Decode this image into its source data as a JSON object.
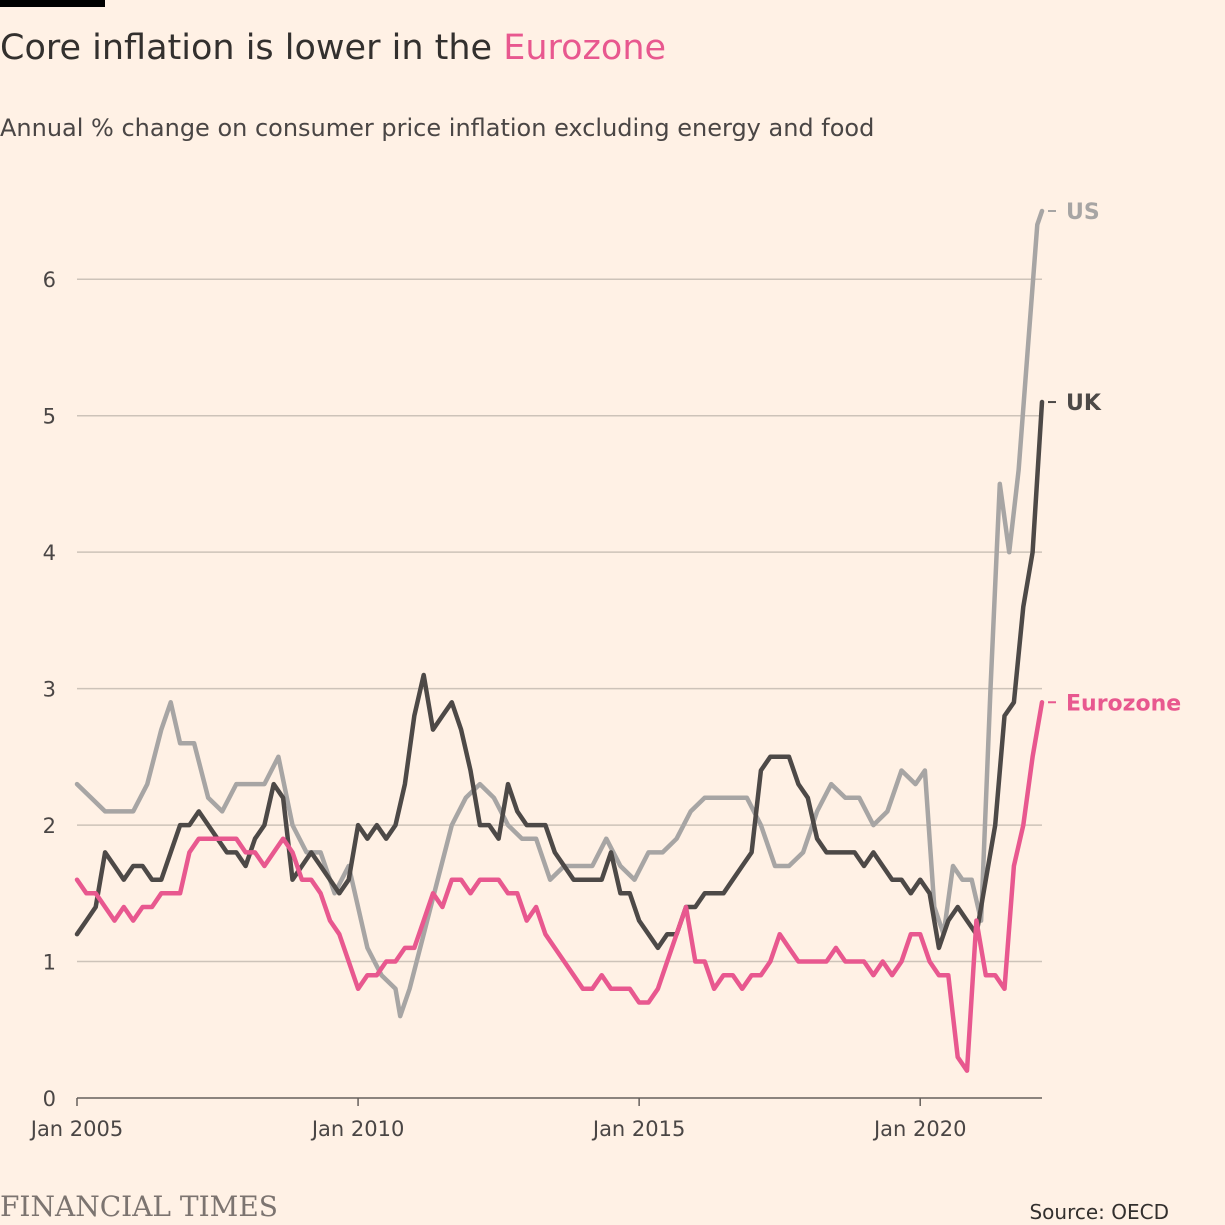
{
  "header": {
    "title_prefix": "Core inflation is lower in the ",
    "title_highlight": "Eurozone",
    "subtitle": "Annual % change on consumer price inflation excluding energy and food"
  },
  "footer": {
    "logo": "FINANCIAL TIMES",
    "source": "Source: OECD"
  },
  "chart_data": {
    "type": "line",
    "title": "Core inflation is lower in the Eurozone",
    "subtitle": "Annual % change on consumer price inflation excluding energy and food",
    "xlabel": "",
    "ylabel": "",
    "x_range": [
      "2005-01",
      "2022-03"
    ],
    "ylim": [
      0,
      6.5
    ],
    "y_ticks": [
      0,
      1,
      2,
      3,
      4,
      5,
      6
    ],
    "x_ticks": [
      {
        "label": "Jan 2005",
        "date": "2005-01"
      },
      {
        "label": "Jan 2010",
        "date": "2010-01"
      },
      {
        "label": "Jan 2015",
        "date": "2015-01"
      },
      {
        "label": "Jan 2020",
        "date": "2020-01"
      }
    ],
    "grid": "horizontal",
    "legend": "direct labels at line ends (right)",
    "series": [
      {
        "name": "US",
        "color": "#a7a5a4",
        "points": [
          [
            "2005-01",
            2.3
          ],
          [
            "2005-04",
            2.2
          ],
          [
            "2005-07",
            2.1
          ],
          [
            "2005-10",
            2.1
          ],
          [
            "2006-01",
            2.1
          ],
          [
            "2006-04",
            2.3
          ],
          [
            "2006-07",
            2.7
          ],
          [
            "2006-09",
            2.9
          ],
          [
            "2006-11",
            2.6
          ],
          [
            "2007-02",
            2.6
          ],
          [
            "2007-05",
            2.2
          ],
          [
            "2007-08",
            2.1
          ],
          [
            "2007-11",
            2.3
          ],
          [
            "2008-02",
            2.3
          ],
          [
            "2008-05",
            2.3
          ],
          [
            "2008-08",
            2.5
          ],
          [
            "2008-11",
            2.0
          ],
          [
            "2009-02",
            1.8
          ],
          [
            "2009-05",
            1.8
          ],
          [
            "2009-08",
            1.5
          ],
          [
            "2009-11",
            1.7
          ],
          [
            "2010-03",
            1.1
          ],
          [
            "2010-06",
            0.9
          ],
          [
            "2010-09",
            0.8
          ],
          [
            "2010-10",
            0.6
          ],
          [
            "2010-12",
            0.8
          ],
          [
            "2011-03",
            1.2
          ],
          [
            "2011-06",
            1.6
          ],
          [
            "2011-09",
            2.0
          ],
          [
            "2011-12",
            2.2
          ],
          [
            "2012-03",
            2.3
          ],
          [
            "2012-06",
            2.2
          ],
          [
            "2012-09",
            2.0
          ],
          [
            "2012-12",
            1.9
          ],
          [
            "2013-03",
            1.9
          ],
          [
            "2013-06",
            1.6
          ],
          [
            "2013-09",
            1.7
          ],
          [
            "2013-12",
            1.7
          ],
          [
            "2014-03",
            1.7
          ],
          [
            "2014-06",
            1.9
          ],
          [
            "2014-09",
            1.7
          ],
          [
            "2014-12",
            1.6
          ],
          [
            "2015-03",
            1.8
          ],
          [
            "2015-06",
            1.8
          ],
          [
            "2015-09",
            1.9
          ],
          [
            "2015-12",
            2.1
          ],
          [
            "2016-03",
            2.2
          ],
          [
            "2016-06",
            2.2
          ],
          [
            "2016-09",
            2.2
          ],
          [
            "2016-12",
            2.2
          ],
          [
            "2017-03",
            2.0
          ],
          [
            "2017-06",
            1.7
          ],
          [
            "2017-09",
            1.7
          ],
          [
            "2017-12",
            1.8
          ],
          [
            "2018-03",
            2.1
          ],
          [
            "2018-06",
            2.3
          ],
          [
            "2018-09",
            2.2
          ],
          [
            "2018-12",
            2.2
          ],
          [
            "2019-03",
            2.0
          ],
          [
            "2019-06",
            2.1
          ],
          [
            "2019-09",
            2.4
          ],
          [
            "2019-12",
            2.3
          ],
          [
            "2020-02",
            2.4
          ],
          [
            "2020-04",
            1.4
          ],
          [
            "2020-06",
            1.2
          ],
          [
            "2020-08",
            1.7
          ],
          [
            "2020-10",
            1.6
          ],
          [
            "2020-12",
            1.6
          ],
          [
            "2021-02",
            1.3
          ],
          [
            "2021-04",
            3.0
          ],
          [
            "2021-06",
            4.5
          ],
          [
            "2021-08",
            4.0
          ],
          [
            "2021-10",
            4.6
          ],
          [
            "2021-12",
            5.5
          ],
          [
            "2022-02",
            6.4
          ],
          [
            "2022-03",
            6.5
          ]
        ]
      },
      {
        "name": "UK",
        "color": "#4d4947",
        "points": [
          [
            "2005-01",
            1.2
          ],
          [
            "2005-03",
            1.3
          ],
          [
            "2005-05",
            1.4
          ],
          [
            "2005-07",
            1.8
          ],
          [
            "2005-09",
            1.7
          ],
          [
            "2005-11",
            1.6
          ],
          [
            "2006-01",
            1.7
          ],
          [
            "2006-03",
            1.7
          ],
          [
            "2006-05",
            1.6
          ],
          [
            "2006-07",
            1.6
          ],
          [
            "2006-09",
            1.8
          ],
          [
            "2006-11",
            2.0
          ],
          [
            "2007-01",
            2.0
          ],
          [
            "2007-03",
            2.1
          ],
          [
            "2007-05",
            2.0
          ],
          [
            "2007-07",
            1.9
          ],
          [
            "2007-09",
            1.8
          ],
          [
            "2007-11",
            1.8
          ],
          [
            "2008-01",
            1.7
          ],
          [
            "2008-03",
            1.9
          ],
          [
            "2008-05",
            2.0
          ],
          [
            "2008-07",
            2.3
          ],
          [
            "2008-09",
            2.2
          ],
          [
            "2008-11",
            1.6
          ],
          [
            "2009-01",
            1.7
          ],
          [
            "2009-03",
            1.8
          ],
          [
            "2009-05",
            1.7
          ],
          [
            "2009-07",
            1.6
          ],
          [
            "2009-09",
            1.5
          ],
          [
            "2009-11",
            1.6
          ],
          [
            "2010-01",
            2.0
          ],
          [
            "2010-03",
            1.9
          ],
          [
            "2010-05",
            2.0
          ],
          [
            "2010-07",
            1.9
          ],
          [
            "2010-09",
            2.0
          ],
          [
            "2010-11",
            2.3
          ],
          [
            "2011-01",
            2.8
          ],
          [
            "2011-03",
            3.1
          ],
          [
            "2011-05",
            2.7
          ],
          [
            "2011-07",
            2.8
          ],
          [
            "2011-09",
            2.9
          ],
          [
            "2011-11",
            2.7
          ],
          [
            "2012-01",
            2.4
          ],
          [
            "2012-03",
            2.0
          ],
          [
            "2012-05",
            2.0
          ],
          [
            "2012-07",
            1.9
          ],
          [
            "2012-09",
            2.3
          ],
          [
            "2012-11",
            2.1
          ],
          [
            "2013-01",
            2.0
          ],
          [
            "2013-03",
            2.0
          ],
          [
            "2013-05",
            2.0
          ],
          [
            "2013-07",
            1.8
          ],
          [
            "2013-09",
            1.7
          ],
          [
            "2013-11",
            1.6
          ],
          [
            "2014-01",
            1.6
          ],
          [
            "2014-03",
            1.6
          ],
          [
            "2014-05",
            1.6
          ],
          [
            "2014-07",
            1.8
          ],
          [
            "2014-09",
            1.5
          ],
          [
            "2014-11",
            1.5
          ],
          [
            "2015-01",
            1.3
          ],
          [
            "2015-03",
            1.2
          ],
          [
            "2015-05",
            1.1
          ],
          [
            "2015-07",
            1.2
          ],
          [
            "2015-09",
            1.2
          ],
          [
            "2015-11",
            1.4
          ],
          [
            "2016-01",
            1.4
          ],
          [
            "2016-03",
            1.5
          ],
          [
            "2016-05",
            1.5
          ],
          [
            "2016-07",
            1.5
          ],
          [
            "2016-09",
            1.6
          ],
          [
            "2016-11",
            1.7
          ],
          [
            "2017-01",
            1.8
          ],
          [
            "2017-03",
            2.4
          ],
          [
            "2017-05",
            2.5
          ],
          [
            "2017-07",
            2.5
          ],
          [
            "2017-09",
            2.5
          ],
          [
            "2017-11",
            2.3
          ],
          [
            "2018-01",
            2.2
          ],
          [
            "2018-03",
            1.9
          ],
          [
            "2018-05",
            1.8
          ],
          [
            "2018-07",
            1.8
          ],
          [
            "2018-09",
            1.8
          ],
          [
            "2018-11",
            1.8
          ],
          [
            "2019-01",
            1.7
          ],
          [
            "2019-03",
            1.8
          ],
          [
            "2019-05",
            1.7
          ],
          [
            "2019-07",
            1.6
          ],
          [
            "2019-09",
            1.6
          ],
          [
            "2019-11",
            1.5
          ],
          [
            "2020-01",
            1.6
          ],
          [
            "2020-03",
            1.5
          ],
          [
            "2020-05",
            1.1
          ],
          [
            "2020-07",
            1.3
          ],
          [
            "2020-09",
            1.4
          ],
          [
            "2020-11",
            1.3
          ],
          [
            "2021-01",
            1.2
          ],
          [
            "2021-03",
            1.6
          ],
          [
            "2021-05",
            2.0
          ],
          [
            "2021-07",
            2.8
          ],
          [
            "2021-09",
            2.9
          ],
          [
            "2021-11",
            3.6
          ],
          [
            "2022-01",
            4.0
          ],
          [
            "2022-03",
            5.1
          ]
        ]
      },
      {
        "name": "Eurozone",
        "color": "#e8588f",
        "points": [
          [
            "2005-01",
            1.6
          ],
          [
            "2005-03",
            1.5
          ],
          [
            "2005-05",
            1.5
          ],
          [
            "2005-07",
            1.4
          ],
          [
            "2005-09",
            1.3
          ],
          [
            "2005-11",
            1.4
          ],
          [
            "2006-01",
            1.3
          ],
          [
            "2006-03",
            1.4
          ],
          [
            "2006-05",
            1.4
          ],
          [
            "2006-07",
            1.5
          ],
          [
            "2006-09",
            1.5
          ],
          [
            "2006-11",
            1.5
          ],
          [
            "2007-01",
            1.8
          ],
          [
            "2007-03",
            1.9
          ],
          [
            "2007-05",
            1.9
          ],
          [
            "2007-07",
            1.9
          ],
          [
            "2007-09",
            1.9
          ],
          [
            "2007-11",
            1.9
          ],
          [
            "2008-01",
            1.8
          ],
          [
            "2008-03",
            1.8
          ],
          [
            "2008-05",
            1.7
          ],
          [
            "2008-07",
            1.8
          ],
          [
            "2008-09",
            1.9
          ],
          [
            "2008-11",
            1.8
          ],
          [
            "2009-01",
            1.6
          ],
          [
            "2009-03",
            1.6
          ],
          [
            "2009-05",
            1.5
          ],
          [
            "2009-07",
            1.3
          ],
          [
            "2009-09",
            1.2
          ],
          [
            "2009-11",
            1.0
          ],
          [
            "2010-01",
            0.8
          ],
          [
            "2010-03",
            0.9
          ],
          [
            "2010-05",
            0.9
          ],
          [
            "2010-07",
            1.0
          ],
          [
            "2010-09",
            1.0
          ],
          [
            "2010-11",
            1.1
          ],
          [
            "2011-01",
            1.1
          ],
          [
            "2011-03",
            1.3
          ],
          [
            "2011-05",
            1.5
          ],
          [
            "2011-07",
            1.4
          ],
          [
            "2011-09",
            1.6
          ],
          [
            "2011-11",
            1.6
          ],
          [
            "2012-01",
            1.5
          ],
          [
            "2012-03",
            1.6
          ],
          [
            "2012-05",
            1.6
          ],
          [
            "2012-07",
            1.6
          ],
          [
            "2012-09",
            1.5
          ],
          [
            "2012-11",
            1.5
          ],
          [
            "2013-01",
            1.3
          ],
          [
            "2013-03",
            1.4
          ],
          [
            "2013-05",
            1.2
          ],
          [
            "2013-07",
            1.1
          ],
          [
            "2013-09",
            1.0
          ],
          [
            "2013-11",
            0.9
          ],
          [
            "2014-01",
            0.8
          ],
          [
            "2014-03",
            0.8
          ],
          [
            "2014-05",
            0.9
          ],
          [
            "2014-07",
            0.8
          ],
          [
            "2014-09",
            0.8
          ],
          [
            "2014-11",
            0.8
          ],
          [
            "2015-01",
            0.7
          ],
          [
            "2015-03",
            0.7
          ],
          [
            "2015-05",
            0.8
          ],
          [
            "2015-07",
            1.0
          ],
          [
            "2015-09",
            1.2
          ],
          [
            "2015-11",
            1.4
          ],
          [
            "2016-01",
            1.0
          ],
          [
            "2016-03",
            1.0
          ],
          [
            "2016-05",
            0.8
          ],
          [
            "2016-07",
            0.9
          ],
          [
            "2016-09",
            0.9
          ],
          [
            "2016-11",
            0.8
          ],
          [
            "2017-01",
            0.9
          ],
          [
            "2017-03",
            0.9
          ],
          [
            "2017-05",
            1.0
          ],
          [
            "2017-07",
            1.2
          ],
          [
            "2017-09",
            1.1
          ],
          [
            "2017-11",
            1.0
          ],
          [
            "2018-01",
            1.0
          ],
          [
            "2018-03",
            1.0
          ],
          [
            "2018-05",
            1.0
          ],
          [
            "2018-07",
            1.1
          ],
          [
            "2018-09",
            1.0
          ],
          [
            "2018-11",
            1.0
          ],
          [
            "2019-01",
            1.0
          ],
          [
            "2019-03",
            0.9
          ],
          [
            "2019-05",
            1.0
          ],
          [
            "2019-07",
            0.9
          ],
          [
            "2019-09",
            1.0
          ],
          [
            "2019-11",
            1.2
          ],
          [
            "2020-01",
            1.2
          ],
          [
            "2020-03",
            1.0
          ],
          [
            "2020-05",
            0.9
          ],
          [
            "2020-07",
            0.9
          ],
          [
            "2020-09",
            0.3
          ],
          [
            "2020-11",
            0.2
          ],
          [
            "2021-01",
            1.3
          ],
          [
            "2021-03",
            0.9
          ],
          [
            "2021-05",
            0.9
          ],
          [
            "2021-07",
            0.8
          ],
          [
            "2021-09",
            1.7
          ],
          [
            "2021-11",
            2.0
          ],
          [
            "2022-01",
            2.5
          ],
          [
            "2022-03",
            2.9
          ]
        ]
      }
    ]
  }
}
